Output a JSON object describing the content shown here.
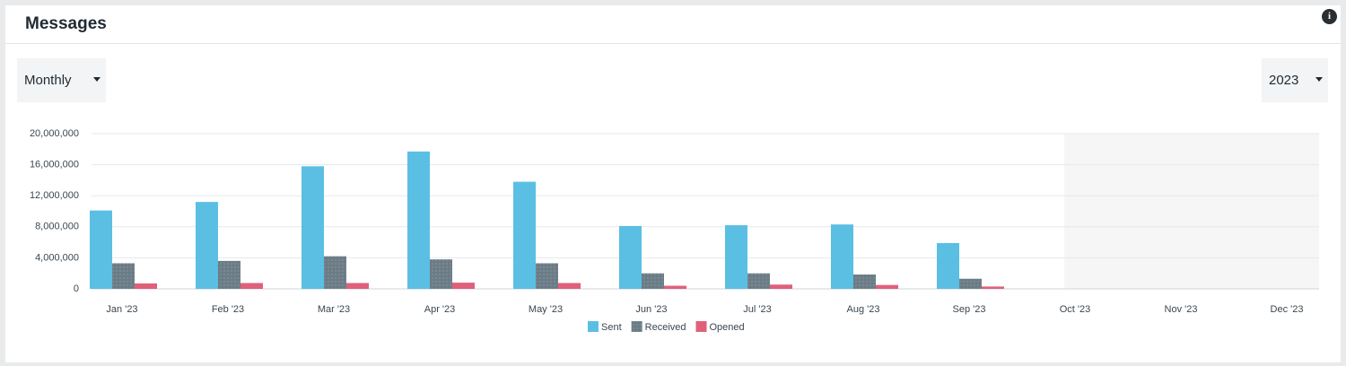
{
  "ui": {
    "title": "Messages",
    "period": "Monthly",
    "year": "2023"
  },
  "chart_data": {
    "type": "bar",
    "categories": [
      "Jan '23",
      "Feb '23",
      "Mar '23",
      "Apr '23",
      "May '23",
      "Jun '23",
      "Jul '23",
      "Aug '23",
      "Sep '23",
      "Oct '23",
      "Nov '23",
      "Dec '23"
    ],
    "series": [
      {
        "name": "Sent",
        "color": "#5bbfe3",
        "values": [
          10100000,
          11200000,
          15800000,
          17700000,
          13800000,
          8100000,
          8200000,
          8300000,
          5900000,
          null,
          null,
          null
        ]
      },
      {
        "name": "Received",
        "color": "#6c7c86",
        "values": [
          3300000,
          3600000,
          4200000,
          3800000,
          3300000,
          2000000,
          2000000,
          1850000,
          1300000,
          null,
          null,
          null
        ]
      },
      {
        "name": "Opened",
        "color": "#e0607a",
        "values": [
          700000,
          750000,
          750000,
          800000,
          750000,
          400000,
          550000,
          500000,
          300000,
          null,
          null,
          null
        ]
      }
    ],
    "ylim": [
      0,
      20000000
    ],
    "yticks": [
      0,
      {
        "value": 4000000,
        "label": "4,000,000"
      },
      {
        "value": 8000000,
        "label": "8,000,000"
      },
      {
        "value": 12000000,
        "label": "12,000,000"
      },
      {
        "value": 16000000,
        "label": "16,000,000"
      },
      {
        "value": 20000000,
        "label": "20,000,000"
      }
    ],
    "grid": true,
    "legend": "bottom"
  }
}
